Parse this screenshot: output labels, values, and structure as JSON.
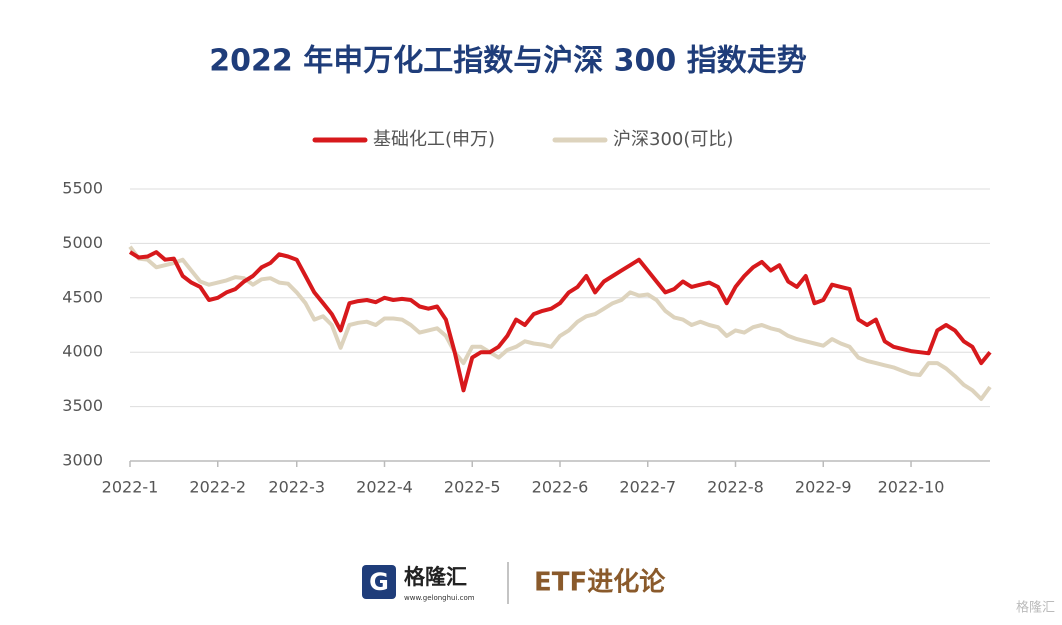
{
  "chart_data": {
    "type": "line",
    "title": "2022 年申万化工指数与沪深 300 指数走势",
    "categories": [
      "2022-1",
      null,
      null,
      null,
      null,
      null,
      null,
      null,
      null,
      null,
      "2022-2",
      null,
      null,
      null,
      null,
      null,
      null,
      null,
      null,
      "2022-3",
      null,
      null,
      null,
      null,
      null,
      null,
      null,
      null,
      null,
      "2022-4",
      null,
      null,
      null,
      null,
      null,
      null,
      null,
      null,
      null,
      "2022-5",
      null,
      null,
      null,
      null,
      null,
      null,
      null,
      null,
      null,
      "2022-6",
      null,
      null,
      null,
      null,
      null,
      null,
      null,
      null,
      null,
      "2022-7",
      null,
      null,
      null,
      null,
      null,
      null,
      null,
      null,
      null,
      "2022-8",
      null,
      null,
      null,
      null,
      null,
      null,
      null,
      null,
      null,
      "2022-9",
      null,
      null,
      null,
      null,
      null,
      null,
      null,
      null,
      null,
      "2022-10",
      null,
      null,
      null,
      null,
      null,
      null,
      null,
      null,
      null
    ],
    "series": [
      {
        "name": "基础化工(申万)",
        "color": "#d7191c",
        "values": [
          4920,
          4870,
          4880,
          4920,
          4850,
          4860,
          4700,
          4640,
          4600,
          4480,
          4500,
          4550,
          4580,
          4650,
          4700,
          4780,
          4820,
          4900,
          4880,
          4850,
          4700,
          4550,
          4450,
          4350,
          4200,
          4450,
          4470,
          4480,
          4460,
          4500,
          4480,
          4490,
          4480,
          4420,
          4400,
          4420,
          4300,
          4000,
          3650,
          3950,
          4000,
          4000,
          4050,
          4150,
          4300,
          4250,
          4350,
          4380,
          4400,
          4450,
          4550,
          4600,
          4700,
          4550,
          4650,
          4700,
          4750,
          4800,
          4850,
          4750,
          4650,
          4550,
          4580,
          4650,
          4600,
          4620,
          4640,
          4600,
          4450,
          4600,
          4700,
          4780,
          4830,
          4750,
          4800,
          4650,
          4600,
          4700,
          4450,
          4480,
          4620,
          4600,
          4580,
          4300,
          4250,
          4300,
          4100,
          4050,
          4030,
          4010,
          4000,
          3990,
          4200,
          4250,
          4200,
          4100,
          4050,
          3900,
          4000
        ]
      },
      {
        "name": "沪深300(可比)",
        "color": "#ddd3bd",
        "values": [
          4970,
          4860,
          4850,
          4780,
          4800,
          4820,
          4850,
          4750,
          4650,
          4620,
          4640,
          4660,
          4690,
          4680,
          4620,
          4670,
          4680,
          4640,
          4630,
          4550,
          4450,
          4300,
          4330,
          4250,
          4040,
          4250,
          4270,
          4280,
          4250,
          4310,
          4310,
          4300,
          4250,
          4180,
          4200,
          4220,
          4150,
          4000,
          3900,
          4050,
          4050,
          4000,
          3950,
          4020,
          4050,
          4100,
          4080,
          4070,
          4050,
          4150,
          4200,
          4280,
          4330,
          4350,
          4400,
          4450,
          4480,
          4550,
          4520,
          4530,
          4480,
          4380,
          4320,
          4300,
          4250,
          4280,
          4250,
          4230,
          4150,
          4200,
          4180,
          4230,
          4250,
          4220,
          4200,
          4150,
          4120,
          4100,
          4080,
          4060,
          4120,
          4080,
          4050,
          3950,
          3920,
          3900,
          3880,
          3860,
          3830,
          3800,
          3790,
          3900,
          3900,
          3850,
          3780,
          3700,
          3650,
          3570,
          3680
        ]
      }
    ],
    "ylim": [
      3000,
      5500
    ],
    "yticks": [
      3000,
      3500,
      4000,
      4500,
      5000,
      5500
    ],
    "grid": true,
    "legend": "top"
  },
  "footer": {
    "brand": "格隆汇",
    "url": "www.gelonghui.com",
    "column": "ETF进化论",
    "watermark": "格隆汇"
  }
}
